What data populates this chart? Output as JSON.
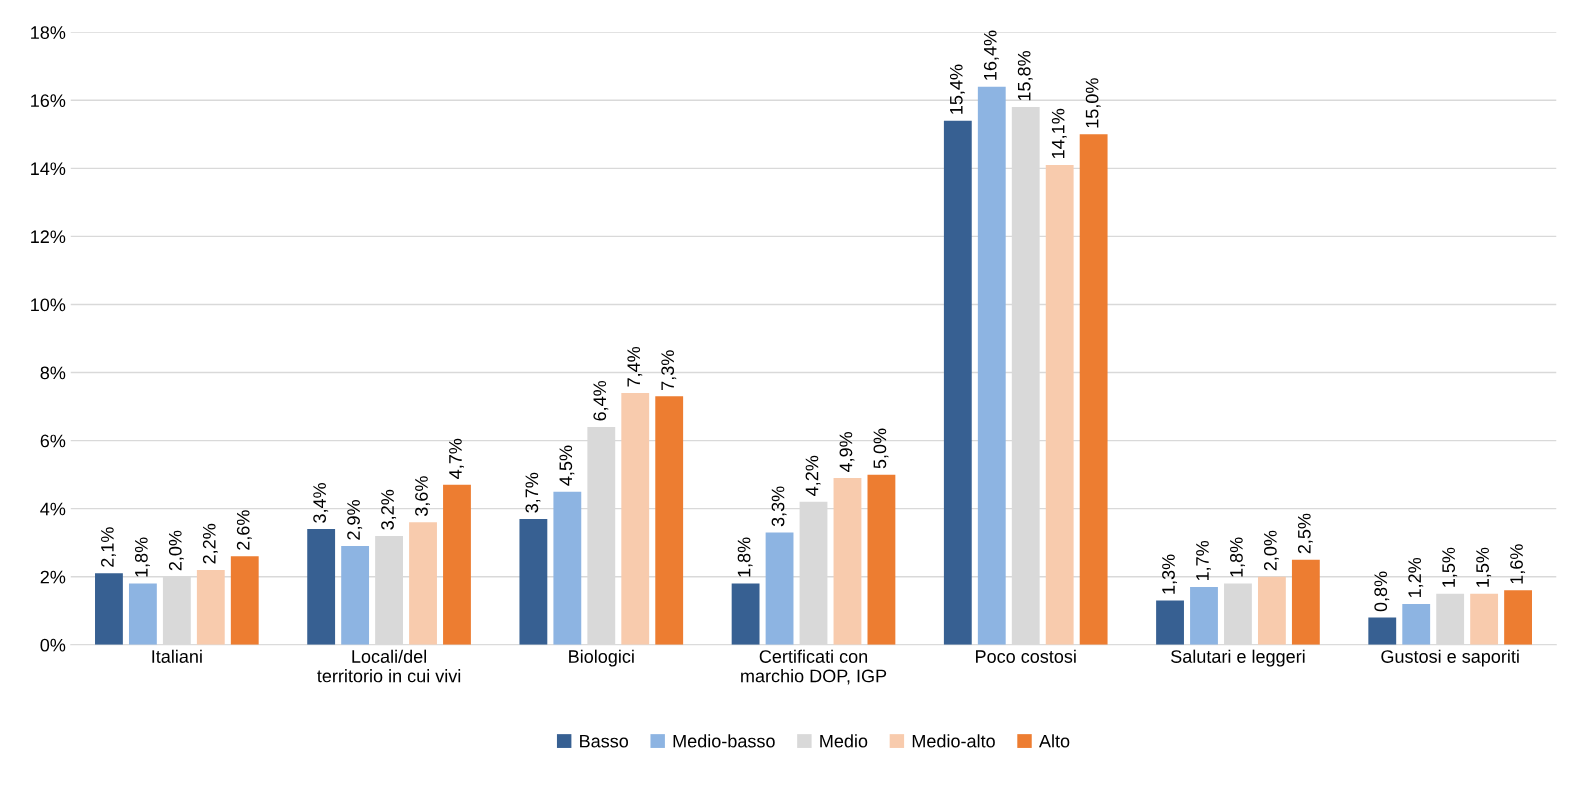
{
  "chart_data": {
    "type": "bar",
    "categories": [
      "Italiani",
      "Locali/del\nterritorio in cui vivi",
      "Biologici",
      "Certificati con\nmarchio DOP, IGP",
      "Poco costosi",
      "Salutari e leggeri",
      "Gustosi e saporiti"
    ],
    "series": [
      {
        "name": "Basso",
        "color": "#376092",
        "values": [
          2.1,
          3.4,
          3.7,
          1.8,
          15.4,
          1.3,
          0.8
        ],
        "value_labels": [
          "2,1%",
          "3,4%",
          "3,7%",
          "1,8%",
          "15,4%",
          "1,3%",
          "0,8%"
        ]
      },
      {
        "name": "Medio-basso",
        "color": "#8db4e2",
        "values": [
          1.8,
          2.9,
          4.5,
          3.3,
          16.4,
          1.7,
          1.2
        ],
        "value_labels": [
          "1,8%",
          "2,9%",
          "4,5%",
          "3,3%",
          "16,4%",
          "1,7%",
          "1,2%"
        ]
      },
      {
        "name": "Medio",
        "color": "#d9d9d9",
        "values": [
          2.0,
          3.2,
          6.4,
          4.2,
          15.8,
          1.8,
          1.5
        ],
        "value_labels": [
          "2,0%",
          "3,2%",
          "6,4%",
          "4,2%",
          "15,8%",
          "1,8%",
          "1,5%"
        ]
      },
      {
        "name": "Medio-alto",
        "color": "#f8cbad",
        "values": [
          2.2,
          3.6,
          7.4,
          4.9,
          14.1,
          2.0,
          1.5
        ],
        "value_labels": [
          "2,2%",
          "3,6%",
          "7,4%",
          "4,9%",
          "14,1%",
          "2,0%",
          "1,5%"
        ]
      },
      {
        "name": "Alto",
        "color": "#ed7d31",
        "values": [
          2.6,
          4.7,
          7.3,
          5.0,
          15.0,
          2.5,
          1.6
        ],
        "value_labels": [
          "2,6%",
          "4,7%",
          "7,3%",
          "5,0%",
          "15,0%",
          "2,5%",
          "1,6%"
        ]
      }
    ],
    "ylim": [
      0,
      18
    ],
    "yticks": [
      {
        "value": 0,
        "label": "0%"
      },
      {
        "value": 2,
        "label": "2%"
      },
      {
        "value": 4,
        "label": "4%"
      },
      {
        "value": 6,
        "label": "6%"
      },
      {
        "value": 8,
        "label": "8%"
      },
      {
        "value": 10,
        "label": "10%"
      },
      {
        "value": 12,
        "label": "12%"
      },
      {
        "value": 14,
        "label": "14%"
      },
      {
        "value": 16,
        "label": "16%"
      },
      {
        "value": 18,
        "label": "18%"
      }
    ],
    "grid": "y",
    "legend": "bottom"
  }
}
